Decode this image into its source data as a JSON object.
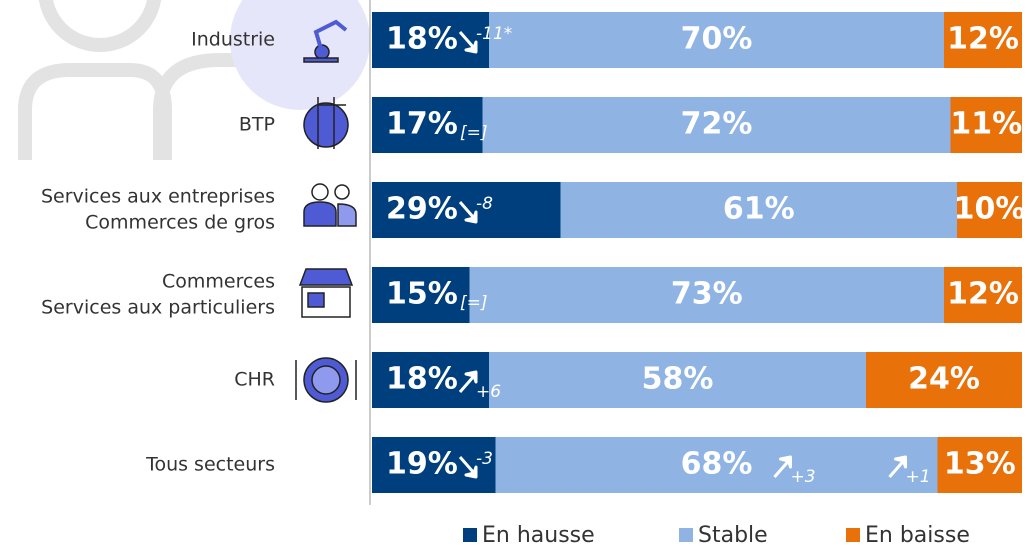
{
  "chart_data": {
    "type": "stacked-bar-horizontal",
    "categories": [
      [
        "Industrie"
      ],
      [
        "BTP"
      ],
      [
        "Services aux entreprises",
        "Commerces de gros"
      ],
      [
        "Commerces",
        "Services aux particuliers"
      ],
      [
        "CHR"
      ],
      [
        "Tous secteurs"
      ]
    ],
    "series": [
      {
        "name": "En hausse",
        "color": "#003f7d",
        "values": [
          18,
          17,
          29,
          15,
          18,
          19
        ],
        "value_labels": [
          "18%",
          "17%",
          "29%",
          "15%",
          "18%",
          "19%"
        ],
        "changes": [
          "-11*",
          "[=]",
          "-8",
          "[=]",
          "+6",
          "-3"
        ]
      },
      {
        "name": "Stable",
        "color": "#8fb4e3",
        "values": [
          70,
          72,
          61,
          73,
          58,
          68
        ],
        "value_labels": [
          "70%",
          "72%",
          "61%",
          "73%",
          "58%",
          "68%"
        ],
        "changes": [
          null,
          null,
          null,
          null,
          null,
          "+3"
        ]
      },
      {
        "name": "En baisse",
        "color": "#e8710a",
        "values": [
          12,
          11,
          10,
          12,
          24,
          13
        ],
        "value_labels": [
          "12%",
          "11%",
          "10%",
          "12%",
          "24%",
          "13%"
        ],
        "changes": [
          null,
          null,
          null,
          null,
          null,
          "+1"
        ]
      }
    ],
    "legend": "bottom"
  }
}
